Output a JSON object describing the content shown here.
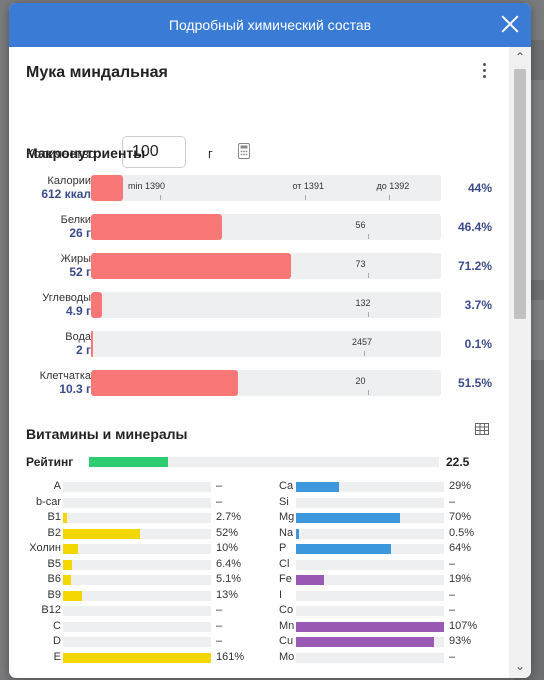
{
  "modal": {
    "title": "Подробный химический состав"
  },
  "food": {
    "name": "Мука миндальная"
  },
  "quantity": {
    "label": "Количество",
    "value": "100",
    "unit": "г"
  },
  "macros": {
    "title": "Макронутриенты",
    "items": [
      {
        "name": "Калории",
        "value": "612 ккал",
        "percent": "44%",
        "fill": 0.09,
        "marks": [
          {
            "label": "min 1390",
            "pos": 0.14
          },
          {
            "label": "от 1391",
            "pos": 0.61
          },
          {
            "label": "до 1392",
            "pos": 0.85
          }
        ]
      },
      {
        "name": "Белки",
        "value": "26 г",
        "percent": "46.4%",
        "fill": 0.375,
        "marks": [
          {
            "label": "56",
            "pos": 0.79
          }
        ]
      },
      {
        "name": "Жиры",
        "value": "52 г",
        "percent": "71.2%",
        "fill": 0.57,
        "marks": [
          {
            "label": "73",
            "pos": 0.79
          }
        ]
      },
      {
        "name": "Углеводы",
        "value": "4.9 г",
        "percent": "3.7%",
        "fill": 0.03,
        "marks": [
          {
            "label": "132",
            "pos": 0.79
          }
        ]
      },
      {
        "name": "Вода",
        "value": "2 г",
        "percent": "0.1%",
        "fill": 0.004,
        "marks": [
          {
            "label": "2457",
            "pos": 0.78
          }
        ]
      },
      {
        "name": "Клетчатка",
        "value": "10.3 г",
        "percent": "51.5%",
        "fill": 0.42,
        "marks": [
          {
            "label": "20",
            "pos": 0.79
          }
        ]
      }
    ]
  },
  "vitamins": {
    "title": "Витамины и минералы",
    "rating": {
      "label": "Рейтинг",
      "value": "22.5",
      "fill": 0.225
    },
    "colors": {
      "vitamin": "#f2d800",
      "mineral_blue": "#3d97dd",
      "mineral_purple": "#9b59b6",
      "macro": "#f87878",
      "rating": "#2ecc71",
      "header": "#3a7bd5",
      "accent_text": "#3b4b8c"
    },
    "left": [
      {
        "name": "A",
        "percent": "–",
        "fill": 0
      },
      {
        "name": "b-car",
        "percent": "–",
        "fill": 0
      },
      {
        "name": "B1",
        "percent": "2.7%",
        "fill": 0.027
      },
      {
        "name": "B2",
        "percent": "52%",
        "fill": 0.52
      },
      {
        "name": "Холин",
        "percent": "10%",
        "fill": 0.1
      },
      {
        "name": "B5",
        "percent": "6.4%",
        "fill": 0.064
      },
      {
        "name": "B6",
        "percent": "5.1%",
        "fill": 0.051
      },
      {
        "name": "B9",
        "percent": "13%",
        "fill": 0.13
      },
      {
        "name": "B12",
        "percent": "–",
        "fill": 0
      },
      {
        "name": "C",
        "percent": "–",
        "fill": 0
      },
      {
        "name": "D",
        "percent": "–",
        "fill": 0
      },
      {
        "name": "E",
        "percent": "161%",
        "fill": 1.0
      }
    ],
    "right": [
      {
        "name": "Ca",
        "percent": "29%",
        "fill": 0.29,
        "color": "blue"
      },
      {
        "name": "Si",
        "percent": "–",
        "fill": 0,
        "color": "blue"
      },
      {
        "name": "Mg",
        "percent": "70%",
        "fill": 0.7,
        "color": "blue"
      },
      {
        "name": "Na",
        "percent": "0.5%",
        "fill": 0.005,
        "color": "blue"
      },
      {
        "name": "P",
        "percent": "64%",
        "fill": 0.64,
        "color": "blue"
      },
      {
        "name": "Cl",
        "percent": "–",
        "fill": 0,
        "color": "blue"
      },
      {
        "name": "Fe",
        "percent": "19%",
        "fill": 0.19,
        "color": "purple"
      },
      {
        "name": "I",
        "percent": "–",
        "fill": 0,
        "color": "purple"
      },
      {
        "name": "Co",
        "percent": "–",
        "fill": 0,
        "color": "purple"
      },
      {
        "name": "Mn",
        "percent": "107%",
        "fill": 1.0,
        "color": "purple"
      },
      {
        "name": "Cu",
        "percent": "93%",
        "fill": 0.93,
        "color": "purple"
      },
      {
        "name": "Mo",
        "percent": "–",
        "fill": 0,
        "color": "purple"
      }
    ]
  },
  "icons": {
    "close": "close-icon",
    "menu": "kebab-menu-icon",
    "calculator": "calculator-icon",
    "table": "table-icon",
    "scroll_up": "chevron-up-icon",
    "scroll_down": "chevron-down-icon"
  }
}
